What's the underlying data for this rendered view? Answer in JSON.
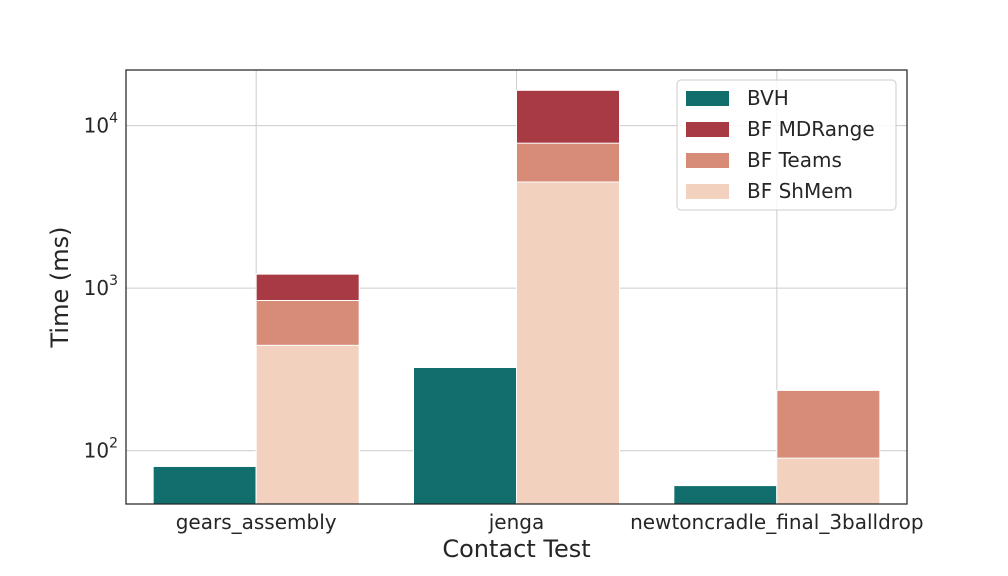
{
  "chart_data": {
    "type": "bar",
    "stacked": true,
    "y_scale": "log",
    "xlabel": "Contact Test",
    "ylabel": "Time (ms)",
    "ylim": [
      47,
      22000
    ],
    "grid": true,
    "legend_position": "top-right",
    "y_ticks": [
      {
        "value": 100,
        "base": "10",
        "exp": "2"
      },
      {
        "value": 1000,
        "base": "10",
        "exp": "3"
      },
      {
        "value": 10000,
        "base": "10",
        "exp": "4"
      }
    ],
    "categories": [
      "gears_assembly",
      "jenga",
      "newtoncradle_final_3balldrop"
    ],
    "series": [
      {
        "name": "BVH",
        "color": "#126e6d",
        "group": "bvh",
        "values": [
          80,
          325,
          61
        ]
      },
      {
        "name": "BF MDRange",
        "color": "#a83a43",
        "group": "bf",
        "values": [
          1220,
          16500,
          null
        ]
      },
      {
        "name": "BF Teams",
        "color": "#d78c77",
        "group": "bf",
        "values": [
          840,
          7800,
          235
        ]
      },
      {
        "name": "BF ShMem",
        "color": "#f2d1be",
        "group": "bf",
        "values": [
          445,
          4500,
          90
        ]
      }
    ]
  }
}
